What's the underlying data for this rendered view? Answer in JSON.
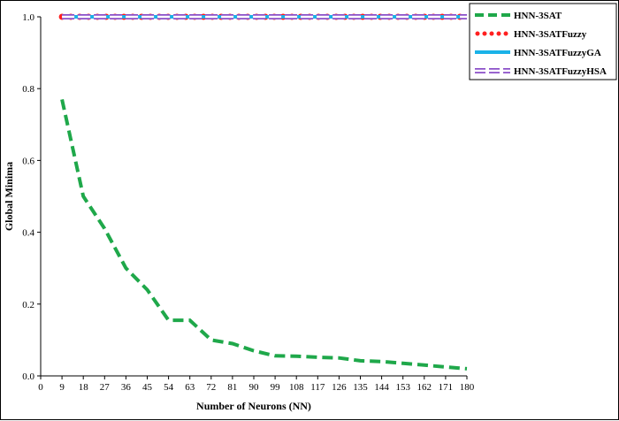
{
  "chart_data": {
    "type": "line",
    "xlabel": "Number of Neurons (NN)",
    "ylabel": "Global Minima",
    "xlim": [
      0,
      180
    ],
    "ylim": [
      0,
      1.0
    ],
    "x_ticks": [
      0,
      9,
      18,
      27,
      36,
      45,
      54,
      63,
      72,
      81,
      90,
      99,
      108,
      117,
      126,
      135,
      144,
      153,
      162,
      171,
      180
    ],
    "y_ticks": [
      "0.0",
      "0.2",
      "0.4",
      "0.6",
      "0.8",
      "1.0"
    ],
    "x": [
      9,
      18,
      27,
      36,
      45,
      54,
      63,
      72,
      81,
      90,
      99,
      108,
      117,
      126,
      135,
      144,
      153,
      162,
      171,
      180
    ],
    "series": [
      {
        "name": "HNN-3SAT",
        "color": "#1fa84a",
        "style": "dashed",
        "values": [
          0.77,
          0.5,
          0.41,
          0.3,
          0.24,
          0.155,
          0.155,
          0.1,
          0.09,
          0.07,
          0.056,
          0.055,
          0.052,
          0.05,
          0.042,
          0.04,
          0.035,
          0.03,
          0.025,
          0.02
        ]
      },
      {
        "name": "HNN-3SATFuzzy",
        "color": "#ff1f1f",
        "style": "dotted",
        "values": [
          1,
          1,
          1,
          1,
          1,
          1,
          1,
          1,
          1,
          1,
          1,
          1,
          1,
          1,
          1,
          1,
          1,
          1,
          1,
          1
        ]
      },
      {
        "name": "HNN-3SATFuzzyGA",
        "color": "#1ab2e8",
        "style": "solid",
        "values": [
          1,
          1,
          1,
          1,
          1,
          1,
          1,
          1,
          1,
          1,
          1,
          1,
          1,
          1,
          1,
          1,
          1,
          1,
          1,
          1
        ]
      },
      {
        "name": "HNN-3SATFuzzyHSA",
        "color": "#8a4fc8",
        "style": "double",
        "values": [
          1,
          1,
          1,
          1,
          1,
          1,
          1,
          1,
          1,
          1,
          1,
          1,
          1,
          1,
          1,
          1,
          1,
          1,
          1,
          1
        ]
      }
    ],
    "legend_position": "top-right",
    "grid": false
  }
}
